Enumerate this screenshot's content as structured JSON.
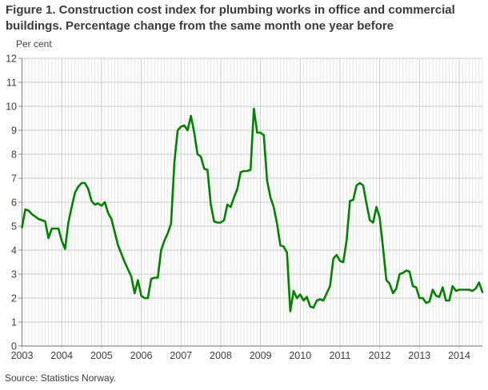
{
  "page": {
    "background": "#ffffff"
  },
  "header": {
    "title": "Figure 1. Construction cost index for plumbing works in office and commercial buildings. Percentage change from the same month one year before"
  },
  "footer": {
    "source": "Source: Statistics Norway."
  },
  "chart_data": {
    "type": "line",
    "title": "Figure 1. Construction cost index for plumbing works in office and commercial buildings. Percentage change from the same month one year before",
    "unit_label": "Per cent",
    "xlabel": "",
    "ylabel": "Per cent",
    "ylim": [
      0,
      12
    ],
    "y_ticks": [
      0,
      1,
      2,
      3,
      4,
      5,
      6,
      7,
      8,
      9,
      10,
      11,
      12
    ],
    "x_tick_labels": [
      "2003",
      "2004",
      "2005",
      "2006",
      "2007",
      "2008",
      "2009",
      "2010",
      "2011",
      "2012",
      "2013",
      "2014"
    ],
    "frequency": "monthly",
    "start_month": "2003-01",
    "end_month": "2014-08",
    "grid": "on",
    "legend_position": "none",
    "colors": {
      "line": "#008200",
      "grid_major": "#c9c9c9",
      "grid_minor": "#e7e7e7",
      "axis": "#8a8a8a",
      "text": "#3d3d3d"
    },
    "series": [
      {
        "name": "Construction cost index for plumbing works, 12-month change",
        "color": "#008200",
        "values": [
          4.95,
          5.7,
          5.65,
          5.5,
          5.4,
          5.3,
          5.25,
          5.2,
          4.5,
          4.9,
          4.9,
          4.9,
          4.4,
          4.05,
          5.15,
          5.8,
          6.4,
          6.65,
          6.8,
          6.8,
          6.55,
          6.05,
          5.9,
          5.95,
          5.85,
          6.0,
          5.55,
          5.3,
          4.75,
          4.2,
          3.85,
          3.5,
          3.2,
          2.9,
          2.2,
          2.75,
          2.1,
          2.0,
          2.0,
          2.8,
          2.85,
          2.85,
          4.0,
          4.4,
          4.7,
          5.1,
          7.65,
          9.0,
          9.15,
          9.2,
          9.0,
          9.6,
          8.9,
          8.0,
          7.9,
          7.4,
          7.35,
          5.9,
          5.2,
          5.15,
          5.15,
          5.25,
          5.9,
          5.8,
          6.2,
          6.55,
          7.25,
          7.3,
          7.3,
          7.35,
          9.9,
          8.9,
          8.9,
          8.8,
          6.9,
          6.2,
          5.8,
          5.1,
          4.2,
          4.15,
          3.9,
          1.45,
          2.3,
          2.0,
          2.15,
          1.9,
          2.05,
          1.65,
          1.6,
          1.9,
          1.95,
          1.9,
          2.2,
          2.5,
          3.65,
          3.8,
          3.55,
          3.5,
          4.4,
          6.05,
          6.1,
          6.7,
          6.8,
          6.7,
          5.95,
          5.25,
          5.15,
          5.8,
          5.35,
          4.1,
          2.75,
          2.6,
          2.2,
          2.4,
          3.0,
          3.05,
          3.15,
          3.1,
          2.5,
          2.45,
          2.0,
          2.0,
          1.8,
          1.85,
          2.35,
          2.1,
          2.05,
          2.45,
          1.9,
          1.9,
          2.5,
          2.3,
          2.35,
          2.35,
          2.35,
          2.35,
          2.3,
          2.4,
          2.65,
          2.25
        ]
      }
    ]
  }
}
